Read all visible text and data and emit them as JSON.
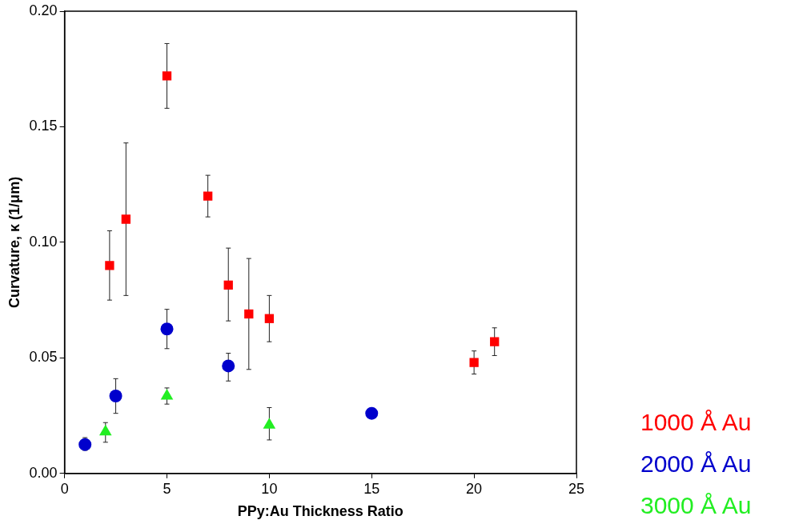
{
  "chart_data": {
    "type": "scatter",
    "xlabel": "PPy:Au Thickness Ratio",
    "ylabel": "Curvature, κ (1/μm)",
    "xlim": [
      0,
      25
    ],
    "xticks": [
      0,
      5,
      10,
      15,
      20,
      25
    ],
    "ylim": [
      0,
      0.2
    ],
    "yticks": [
      {
        "value": 0,
        "label": "0.00"
      },
      {
        "value": 0.05,
        "label": "0.05"
      },
      {
        "value": 0.1,
        "label": "0.10"
      },
      {
        "value": 0.15,
        "label": "0.15"
      },
      {
        "value": 0.2,
        "label": "0.20"
      }
    ],
    "grid": false,
    "legend": "bottom right",
    "series": [
      {
        "name": "1000 Å Au",
        "color": "#ff0000",
        "marker": "square",
        "x": [
          2.2,
          3,
          5,
          7,
          8,
          9,
          10,
          20,
          21
        ],
        "values": [
          0.09,
          0.11,
          0.172,
          0.12,
          0.0815,
          0.069,
          0.067,
          0.048,
          0.057
        ],
        "errors": [
          [
            0.075,
            0.105
          ],
          [
            0.077,
            0.143
          ],
          [
            0.158,
            0.186
          ],
          [
            0.111,
            0.129
          ],
          [
            0.066,
            0.0975
          ],
          [
            0.045,
            0.093
          ],
          [
            0.057,
            0.077
          ],
          [
            0.043,
            0.053
          ],
          [
            0.051,
            0.063
          ]
        ]
      },
      {
        "name": "2000 Å Au",
        "color": "#0000cc",
        "marker": "circle",
        "x": [
          1,
          2.5,
          5,
          8,
          15
        ],
        "values": [
          0.0125,
          0.0335,
          0.0625,
          0.0465,
          0.026
        ],
        "errors": [
          [
            0.01,
            0.0155
          ],
          [
            0.026,
            0.041
          ],
          [
            0.054,
            0.071
          ],
          [
            0.04,
            0.052
          ],
          null
        ]
      },
      {
        "name": "3000 Å Au",
        "color": "#22ee22",
        "marker": "triangle",
        "x": [
          2,
          5,
          10
        ],
        "values": [
          0.018,
          0.0335,
          0.021
        ],
        "errors": [
          [
            0.0135,
            0.022
          ],
          [
            0.03,
            0.037
          ],
          [
            0.0145,
            0.0285
          ]
        ]
      }
    ]
  }
}
